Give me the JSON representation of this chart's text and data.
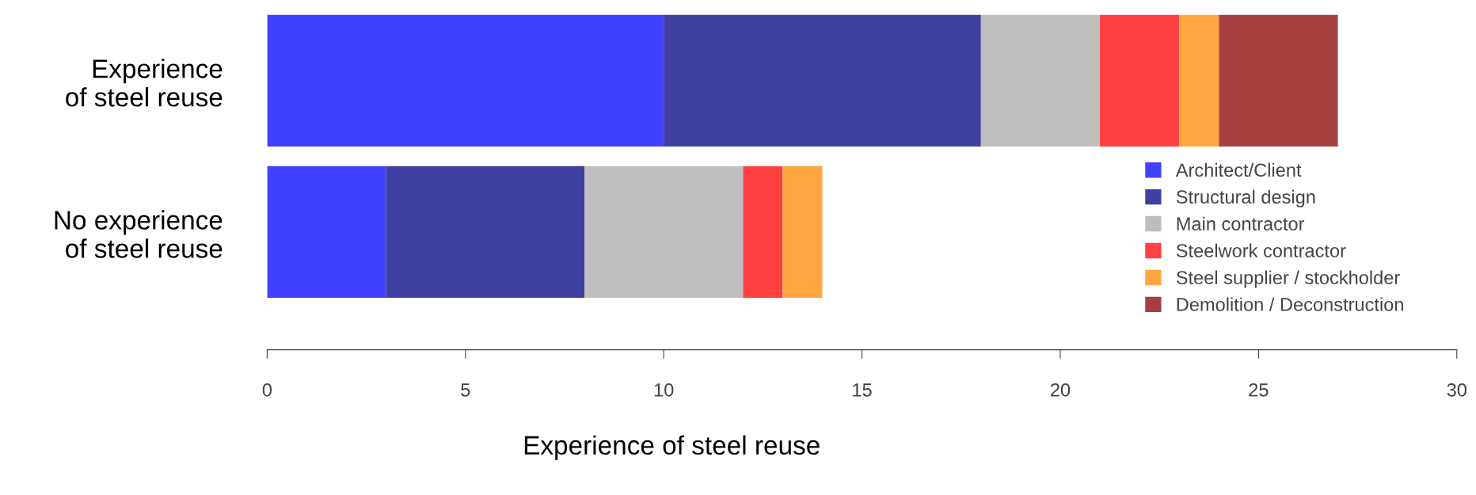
{
  "chart_data": {
    "type": "bar",
    "orientation": "horizontal",
    "stacked": true,
    "categories": [
      "Experience\nof steel reuse",
      "No experience\nof steel reuse"
    ],
    "series": [
      {
        "name": "Architect/Client",
        "color": "#4040ff",
        "values": [
          10,
          3
        ]
      },
      {
        "name": "Structural design",
        "color": "#4040a0",
        "values": [
          8,
          5
        ]
      },
      {
        "name": "Main contractor",
        "color": "#bebebe",
        "values": [
          3,
          4
        ]
      },
      {
        "name": "Steelwork contractor",
        "color": "#ff4040",
        "values": [
          2,
          1
        ]
      },
      {
        "name": "Steel supplier / stockholder",
        "color": "#ffa640",
        "values": [
          1,
          1
        ]
      },
      {
        "name": "Demolition / Deconstruction",
        "color": "#a64040",
        "values": [
          3,
          0
        ]
      }
    ],
    "xlim": [
      0,
      30
    ],
    "xticks": [
      0,
      5,
      10,
      15,
      20,
      25,
      30
    ],
    "xlabel": "Experience of steel reuse",
    "grid": false,
    "legend": "right"
  }
}
